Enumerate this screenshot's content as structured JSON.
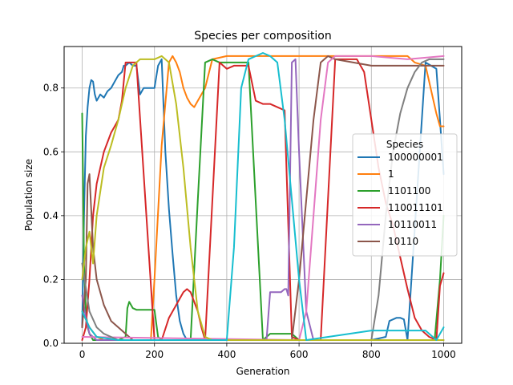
{
  "chart_data": {
    "type": "line",
    "title": "Species per composition",
    "xlabel": "Generation",
    "ylabel": "Population size",
    "xlim": [
      -50,
      1050
    ],
    "ylim": [
      0,
      0.93
    ],
    "xticks": [
      0,
      200,
      400,
      600,
      800,
      1000
    ],
    "yticks": [
      0.0,
      0.2,
      0.4,
      0.6,
      0.8
    ],
    "ytick_labels": [
      "0.0",
      "0.2",
      "0.4",
      "0.6",
      "0.8"
    ],
    "grid": true,
    "legend": {
      "title": "Species",
      "placement": "center-right"
    },
    "series": [
      {
        "name": "100000001",
        "color": "#1f77b4",
        "x": [
          0,
          5,
          10,
          15,
          20,
          25,
          30,
          35,
          40,
          50,
          60,
          70,
          80,
          90,
          100,
          110,
          115,
          120,
          130,
          140,
          150,
          160,
          170,
          180,
          200,
          210,
          220,
          230,
          240,
          250,
          260,
          270,
          280,
          290,
          300,
          320,
          400,
          600,
          800,
          840,
          850,
          860,
          870,
          880,
          890,
          900,
          950,
          980,
          990,
          1000
        ],
        "y": [
          0.05,
          0.4,
          0.65,
          0.74,
          0.8,
          0.825,
          0.82,
          0.78,
          0.76,
          0.78,
          0.77,
          0.79,
          0.8,
          0.82,
          0.84,
          0.85,
          0.87,
          0.87,
          0.88,
          0.87,
          0.87,
          0.78,
          0.8,
          0.8,
          0.8,
          0.87,
          0.89,
          0.6,
          0.42,
          0.28,
          0.15,
          0.07,
          0.03,
          0.01,
          0.01,
          0.01,
          0.01,
          0.01,
          0.01,
          0.02,
          0.07,
          0.075,
          0.08,
          0.08,
          0.075,
          0.01,
          0.88,
          0.86,
          0.7,
          0.53
        ]
      },
      {
        "name": "1",
        "color": "#ff7f0e",
        "x": [
          0,
          20,
          40,
          60,
          80,
          100,
          120,
          140,
          160,
          180,
          190,
          200,
          220,
          240,
          250,
          260,
          270,
          280,
          290,
          300,
          310,
          320,
          340,
          360,
          400,
          600,
          800,
          900,
          920,
          950,
          980,
          990,
          1000
        ],
        "y": [
          0.1,
          0.05,
          0.02,
          0.01,
          0.01,
          0.01,
          0.01,
          0.01,
          0.01,
          0.01,
          0.01,
          0.2,
          0.62,
          0.88,
          0.9,
          0.88,
          0.85,
          0.8,
          0.77,
          0.75,
          0.74,
          0.76,
          0.8,
          0.89,
          0.9,
          0.9,
          0.9,
          0.9,
          0.88,
          0.87,
          0.72,
          0.68,
          0.68
        ]
      },
      {
        "name": "1101100",
        "color": "#2ca02c",
        "x": [
          0,
          2,
          5,
          10,
          15,
          20,
          30,
          40,
          60,
          80,
          100,
          120,
          125,
          130,
          140,
          150,
          160,
          170,
          180,
          200,
          210,
          220,
          240,
          260,
          280,
          300,
          320,
          340,
          360,
          380,
          400,
          460,
          500,
          520,
          560,
          580,
          600,
          660,
          700,
          740,
          760,
          800,
          850,
          900,
          950,
          975,
          990,
          1000
        ],
        "y": [
          0.72,
          0.55,
          0.25,
          0.1,
          0.05,
          0.03,
          0.01,
          0.01,
          0.01,
          0.01,
          0.01,
          0.02,
          0.11,
          0.13,
          0.11,
          0.105,
          0.105,
          0.105,
          0.105,
          0.105,
          0.02,
          0.01,
          0.01,
          0.01,
          0.01,
          0.01,
          0.45,
          0.88,
          0.89,
          0.88,
          0.88,
          0.88,
          0.01,
          0.03,
          0.03,
          0.03,
          0.01,
          0.01,
          0.01,
          0.01,
          0.01,
          0.01,
          0.01,
          0.01,
          0.01,
          0.01,
          0.2,
          0.4
        ]
      },
      {
        "name": "110011101",
        "color": "#d62728",
        "x": [
          0,
          10,
          20,
          30,
          40,
          50,
          60,
          70,
          80,
          90,
          100,
          110,
          120,
          150,
          200,
          220,
          240,
          260,
          270,
          280,
          290,
          300,
          310,
          320,
          330,
          340,
          380,
          400,
          420,
          440,
          460,
          480,
          500,
          520,
          540,
          560,
          580,
          600,
          620,
          660,
          700,
          760,
          780,
          800,
          820,
          840,
          860,
          880,
          900,
          920,
          940,
          960,
          980,
          990,
          1000
        ],
        "y": [
          0.01,
          0.05,
          0.2,
          0.4,
          0.5,
          0.55,
          0.6,
          0.63,
          0.66,
          0.68,
          0.7,
          0.76,
          0.88,
          0.88,
          0.01,
          0.01,
          0.08,
          0.12,
          0.14,
          0.16,
          0.17,
          0.16,
          0.13,
          0.1,
          0.05,
          0.01,
          0.88,
          0.86,
          0.87,
          0.87,
          0.87,
          0.76,
          0.75,
          0.75,
          0.74,
          0.73,
          0.02,
          0.01,
          0.01,
          0.01,
          0.89,
          0.89,
          0.85,
          0.7,
          0.55,
          0.44,
          0.37,
          0.27,
          0.17,
          0.08,
          0.04,
          0.02,
          0.01,
          0.18,
          0.22
        ]
      },
      {
        "name": "10110011",
        "color": "#9467bd",
        "x": [
          0,
          10,
          20,
          40,
          80,
          100,
          200,
          480,
          500,
          510,
          520,
          540,
          550,
          560,
          565,
          570,
          580,
          590,
          600,
          620,
          640,
          660,
          680,
          700,
          800,
          900,
          1000
        ],
        "y": [
          0.15,
          0.08,
          0.03,
          0.01,
          0.01,
          0.01,
          0.01,
          0.01,
          0.01,
          0.01,
          0.16,
          0.16,
          0.16,
          0.17,
          0.17,
          0.15,
          0.88,
          0.89,
          0.6,
          0.1,
          0.01,
          0.01,
          0.01,
          0.01,
          0.01,
          0.01,
          0.01
        ]
      },
      {
        "name": "10110",
        "color": "#8c564b",
        "x": [
          0,
          10,
          15,
          20,
          30,
          40,
          60,
          80,
          100,
          120,
          140,
          160,
          200,
          400,
          560,
          580,
          600,
          620,
          640,
          660,
          680,
          700,
          800,
          900,
          1000
        ],
        "y": [
          0.05,
          0.2,
          0.5,
          0.53,
          0.3,
          0.2,
          0.12,
          0.07,
          0.05,
          0.03,
          0.01,
          0.01,
          0.01,
          0.01,
          0.01,
          0.01,
          0.2,
          0.45,
          0.7,
          0.88,
          0.9,
          0.89,
          0.87,
          0.87,
          0.87
        ]
      },
      {
        "name": "",
        "color": "#e377c2",
        "x": [
          0,
          600,
          620,
          640,
          660,
          680,
          700,
          800,
          900,
          1000
        ],
        "y": [
          0.02,
          0.01,
          0.1,
          0.4,
          0.7,
          0.88,
          0.9,
          0.9,
          0.89,
          0.9
        ]
      },
      {
        "name": "",
        "color": "#7f7f7f",
        "x": [
          0,
          20,
          40,
          60,
          80,
          100,
          800,
          820,
          840,
          860,
          880,
          900,
          920,
          940,
          960,
          980,
          1000
        ],
        "y": [
          0.25,
          0.1,
          0.05,
          0.03,
          0.02,
          0.01,
          0.01,
          0.15,
          0.4,
          0.6,
          0.72,
          0.8,
          0.85,
          0.88,
          0.89,
          0.89,
          0.89
        ]
      },
      {
        "name": "",
        "color": "#bcbd22",
        "x": [
          0,
          10,
          20,
          30,
          40,
          60,
          80,
          100,
          120,
          140,
          160,
          200,
          220,
          240,
          260,
          280,
          300,
          320,
          340,
          360,
          1000
        ],
        "y": [
          0.2,
          0.3,
          0.35,
          0.25,
          0.4,
          0.55,
          0.62,
          0.7,
          0.8,
          0.87,
          0.89,
          0.89,
          0.9,
          0.88,
          0.75,
          0.55,
          0.3,
          0.1,
          0.02,
          0.01,
          0.01
        ]
      },
      {
        "name": "",
        "color": "#17becf",
        "x": [
          0,
          20,
          40,
          100,
          400,
          420,
          440,
          460,
          480,
          500,
          520,
          540,
          560,
          580,
          600,
          620,
          800,
          950,
          980,
          1000
        ],
        "y": [
          0.1,
          0.05,
          0.02,
          0.01,
          0.01,
          0.3,
          0.8,
          0.89,
          0.9,
          0.91,
          0.9,
          0.88,
          0.7,
          0.45,
          0.2,
          0.01,
          0.04,
          0.04,
          0.01,
          0.05
        ]
      }
    ]
  }
}
